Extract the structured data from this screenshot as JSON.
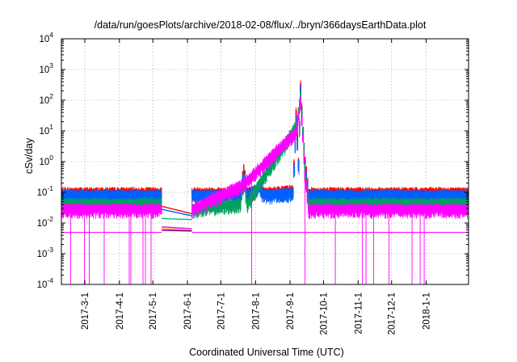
{
  "chart_data": {
    "type": "line",
    "title": "/data/run/goesPlots/archive/2018-02-08/flux/../bryn/366daysEarthData.plot",
    "xlabel": "Coordinated Universal Time (UTC)",
    "ylabel": "cSv/day",
    "yscale": "log",
    "ylim": [
      0.0001,
      10000
    ],
    "xlim": [
      "2017-02-08",
      "2018-02-08"
    ],
    "yticks": [
      {
        "base": "10",
        "exp": "-4",
        "value": 0.0001
      },
      {
        "base": "10",
        "exp": "-3",
        "value": 0.001
      },
      {
        "base": "10",
        "exp": "-2",
        "value": 0.01
      },
      {
        "base": "10",
        "exp": "-1",
        "value": 0.1
      },
      {
        "base": "10",
        "exp": "0",
        "value": 1
      },
      {
        "base": "10",
        "exp": "1",
        "value": 10
      },
      {
        "base": "10",
        "exp": "2",
        "value": 100
      },
      {
        "base": "10",
        "exp": "3",
        "value": 1000
      },
      {
        "base": "10",
        "exp": "4",
        "value": 10000
      }
    ],
    "xticks": [
      {
        "label": "2017-3-1",
        "date": "2017-03-01"
      },
      {
        "label": "2017-4-1",
        "date": "2017-04-01"
      },
      {
        "label": "2017-5-1",
        "date": "2017-05-01"
      },
      {
        "label": "2017-6-1",
        "date": "2017-06-01"
      },
      {
        "label": "2017-7-1",
        "date": "2017-07-01"
      },
      {
        "label": "2017-8-1",
        "date": "2017-08-01"
      },
      {
        "label": "2017-9-1",
        "date": "2017-09-01"
      },
      {
        "label": "2017-10-1",
        "date": "2017-10-01"
      },
      {
        "label": "2017-11-1",
        "date": "2017-11-01"
      },
      {
        "label": "2017-12-1",
        "date": "2017-12-01"
      },
      {
        "label": "2018-1-1",
        "date": "2018-01-01"
      }
    ],
    "grid": true,
    "legend": "none",
    "data_gap": [
      "2017-05-09",
      "2017-06-05"
    ],
    "series": [
      {
        "color": "#ff0000",
        "baseline": 0.1,
        "points": [
          [
            "2017-02-08",
            0.1
          ],
          [
            "2017-05-09",
            0.1
          ],
          [
            "2017-06-05",
            0.1
          ],
          [
            "2017-07-18",
            0.1
          ],
          [
            "2017-07-21",
            0.7
          ],
          [
            "2017-07-24",
            0.1
          ],
          [
            "2017-08-01",
            0.12
          ],
          [
            "2017-08-04",
            0.2
          ],
          [
            "2017-08-08",
            0.1
          ],
          [
            "2017-09-03",
            0.12
          ],
          [
            "2017-09-06",
            40
          ],
          [
            "2017-09-08",
            1
          ],
          [
            "2017-09-10",
            300
          ],
          [
            "2017-09-12",
            10
          ],
          [
            "2017-09-14",
            1
          ],
          [
            "2017-09-17",
            0.1
          ],
          [
            "2018-02-08",
            0.1
          ]
        ]
      },
      {
        "color": "#0060ff",
        "baseline": 0.09,
        "points": [
          [
            "2017-02-08",
            0.085
          ],
          [
            "2017-05-09",
            0.085
          ],
          [
            "2017-06-05",
            0.085
          ],
          [
            "2017-07-18",
            0.085
          ],
          [
            "2017-07-21",
            0.5
          ],
          [
            "2017-07-24",
            0.085
          ],
          [
            "2017-08-04",
            0.15
          ],
          [
            "2017-08-08",
            0.085
          ],
          [
            "2017-09-03",
            0.1
          ],
          [
            "2017-09-06",
            25
          ],
          [
            "2017-09-08",
            0.8
          ],
          [
            "2017-09-10",
            220
          ],
          [
            "2017-09-12",
            8
          ],
          [
            "2017-09-14",
            0.8
          ],
          [
            "2017-09-17",
            0.085
          ],
          [
            "2018-02-08",
            0.085
          ]
        ]
      },
      {
        "color": "#00a060",
        "baseline": 0.045,
        "points": [
          [
            "2017-02-08",
            0.045
          ],
          [
            "2017-05-09",
            0.045
          ],
          [
            "2017-06-05",
            0.03
          ],
          [
            "2017-07-18",
            0.045
          ],
          [
            "2017-07-21",
            0.3
          ],
          [
            "2017-07-24",
            0.045
          ],
          [
            "2017-09-06",
            15
          ],
          [
            "2017-09-10",
            150
          ],
          [
            "2017-09-14",
            0.6
          ],
          [
            "2017-09-17",
            0.045
          ],
          [
            "2018-02-08",
            0.045
          ]
        ]
      },
      {
        "color": "#ff00ff",
        "baseline": 0.03,
        "dropouts_to": 0.005,
        "points": [
          [
            "2017-02-08",
            0.03
          ],
          [
            "2017-05-09",
            0.03
          ],
          [
            "2017-06-05",
            0.03
          ],
          [
            "2017-07-21",
            0.2
          ],
          [
            "2017-09-06",
            10
          ],
          [
            "2017-09-10",
            100
          ],
          [
            "2017-09-14",
            0.4
          ],
          [
            "2017-09-17",
            0.03
          ],
          [
            "2018-02-08",
            0.03
          ]
        ]
      }
    ]
  }
}
